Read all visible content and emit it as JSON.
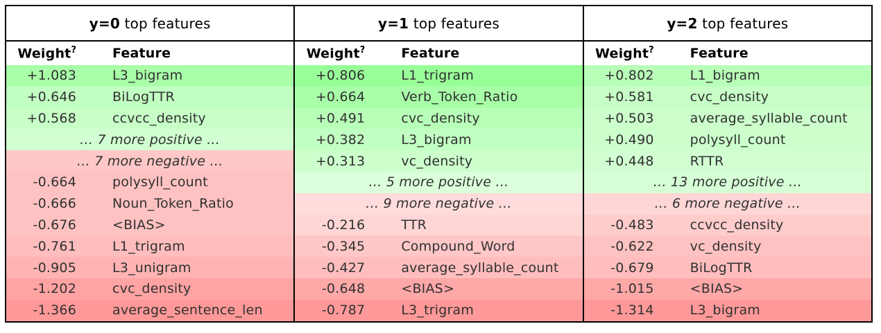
{
  "colors": {
    "border": "#000000",
    "header_text": "#000000",
    "body_text": "#303030",
    "page_background": "#ffffff",
    "positive_base": "hsl(120, 100%, 80%)",
    "negative_base": "hsl(0, 100%, 80%)"
  },
  "chart_data": {
    "type": "table",
    "description": "Three side-by-side classifier feature-weight tables (one per class), rows shaded green for positive weights and red for negative weights, darker with larger magnitude.",
    "tables": [
      {
        "title": {
          "bold": "y=0",
          "rest": " top features"
        },
        "weight_header": "Weight",
        "weight_header_sup": "?",
        "feature_header": "Feature",
        "rows": [
          {
            "kind": "item",
            "weight": "+1.083",
            "feature": "L3_bigram",
            "bg": "hsl(120, 100%, 83%)"
          },
          {
            "kind": "item",
            "weight": "+0.646",
            "feature": "BiLogTTR",
            "bg": "hsl(120, 100%, 88%)"
          },
          {
            "kind": "item",
            "weight": "+0.568",
            "feature": "ccvcc_density",
            "bg": "hsl(120, 100%, 89%)"
          },
          {
            "kind": "ellipsis",
            "label": "… 7 more positive …",
            "bg": "hsl(120, 100%, 91%)"
          },
          {
            "kind": "ellipsis",
            "label": "… 7 more negative …",
            "bg": "hsl(0, 100%, 89%)"
          },
          {
            "kind": "item",
            "weight": "-0.664",
            "feature": "polysyll_count",
            "bg": "hsl(0, 100%, 88%)"
          },
          {
            "kind": "item",
            "weight": "-0.666",
            "feature": "Noun_Token_Ratio",
            "bg": "hsl(0, 100%, 88%)"
          },
          {
            "kind": "item",
            "weight": "-0.676",
            "feature": "<BIAS>",
            "bg": "hsl(0, 100%, 88%)"
          },
          {
            "kind": "item",
            "weight": "-0.761",
            "feature": "L1_trigram",
            "bg": "hsl(0, 100%, 87%)"
          },
          {
            "kind": "item",
            "weight": "-0.905",
            "feature": "L3_unigram",
            "bg": "hsl(0, 100%, 85%)"
          },
          {
            "kind": "item",
            "weight": "-1.202",
            "feature": "cvc_density",
            "bg": "hsl(0, 100%, 82%)"
          },
          {
            "kind": "item",
            "weight": "-1.366",
            "feature": "average_sentence_len",
            "bg": "hsl(0, 100%, 80%)"
          }
        ]
      },
      {
        "title": {
          "bold": "y=1",
          "rest": " top features"
        },
        "weight_header": "Weight",
        "weight_header_sup": "?",
        "feature_header": "Feature",
        "rows": [
          {
            "kind": "item",
            "weight": "+0.806",
            "feature": "L1_trigram",
            "bg": "hsl(120, 100%, 80%)"
          },
          {
            "kind": "item",
            "weight": "+0.664",
            "feature": "Verb_Token_Ratio",
            "bg": "hsl(120, 100%, 83%)"
          },
          {
            "kind": "item",
            "weight": "+0.491",
            "feature": "cvc_density",
            "bg": "hsl(120, 100%, 86%)"
          },
          {
            "kind": "item",
            "weight": "+0.382",
            "feature": "L3_bigram",
            "bg": "hsl(120, 100%, 88%)"
          },
          {
            "kind": "item",
            "weight": "+0.313",
            "feature": "vc_density",
            "bg": "hsl(120, 100%, 90%)"
          },
          {
            "kind": "ellipsis",
            "label": "… 5 more positive …",
            "bg": "hsl(120, 100%, 93%)"
          },
          {
            "kind": "ellipsis",
            "label": "… 9 more negative …",
            "bg": "hsl(0, 100%, 93%)"
          },
          {
            "kind": "item",
            "weight": "-0.216",
            "feature": "TTR",
            "bg": "hsl(0, 100%, 92%)"
          },
          {
            "kind": "item",
            "weight": "-0.345",
            "feature": "Compound_Word",
            "bg": "hsl(0, 100%, 89%)"
          },
          {
            "kind": "item",
            "weight": "-0.427",
            "feature": "average_syllable_count",
            "bg": "hsl(0, 100%, 87%)"
          },
          {
            "kind": "item",
            "weight": "-0.648",
            "feature": "<BIAS>",
            "bg": "hsl(0, 100%, 83%)"
          },
          {
            "kind": "item",
            "weight": "-0.787",
            "feature": "L3_trigram",
            "bg": "hsl(0, 100%, 80%)"
          }
        ]
      },
      {
        "title": {
          "bold": "y=2",
          "rest": " top features"
        },
        "weight_header": "Weight",
        "weight_header_sup": "?",
        "feature_header": "Feature",
        "rows": [
          {
            "kind": "item",
            "weight": "+0.802",
            "feature": "L1_bigram",
            "bg": "hsl(120, 100%, 86%)"
          },
          {
            "kind": "item",
            "weight": "+0.581",
            "feature": "cvc_density",
            "bg": "hsl(120, 100%, 89%)"
          },
          {
            "kind": "item",
            "weight": "+0.503",
            "feature": "average_syllable_count",
            "bg": "hsl(120, 100%, 90%)"
          },
          {
            "kind": "item",
            "weight": "+0.490",
            "feature": "polysyll_count",
            "bg": "hsl(120, 100%, 90%)"
          },
          {
            "kind": "item",
            "weight": "+0.448",
            "feature": "RTTR",
            "bg": "hsl(120, 100%, 91%)"
          },
          {
            "kind": "ellipsis",
            "label": "… 13 more positive …",
            "bg": "hsl(120, 100%, 92%)"
          },
          {
            "kind": "ellipsis",
            "label": "… 6 more negative …",
            "bg": "hsl(0, 100%, 92%)"
          },
          {
            "kind": "item",
            "weight": "-0.483",
            "feature": "ccvcc_density",
            "bg": "hsl(0, 100%, 90%)"
          },
          {
            "kind": "item",
            "weight": "-0.622",
            "feature": "vc_density",
            "bg": "hsl(0, 100%, 88%)"
          },
          {
            "kind": "item",
            "weight": "-0.679",
            "feature": "BiLogTTR",
            "bg": "hsl(0, 100%, 87%)"
          },
          {
            "kind": "item",
            "weight": "-1.015",
            "feature": "<BIAS>",
            "bg": "hsl(0, 100%, 83%)"
          },
          {
            "kind": "item",
            "weight": "-1.314",
            "feature": "L3_bigram",
            "bg": "hsl(0, 100%, 80%)"
          }
        ]
      }
    ]
  }
}
